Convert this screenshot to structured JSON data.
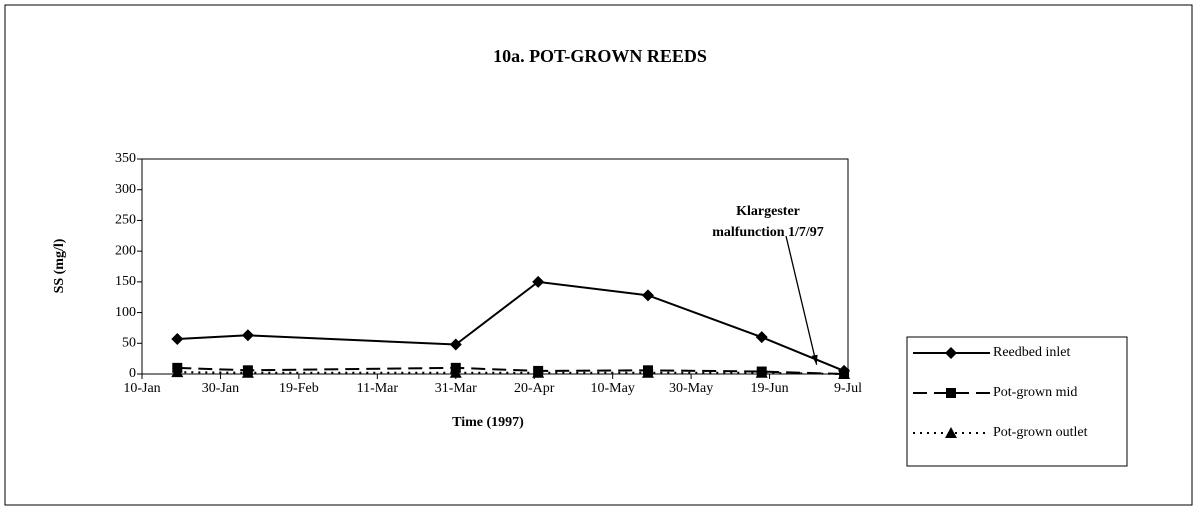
{
  "chart_data": {
    "type": "line",
    "title": "10a. POT-GROWN REEDS",
    "y_label": "SS (mg/l)",
    "x_label": "Time (1997)",
    "x": [
      "1997-01-19",
      "1997-02-06",
      "1997-03-31",
      "1997-04-21",
      "1997-05-19",
      "1997-06-17",
      "1997-07-08"
    ],
    "series": [
      {
        "name": "Reedbed inlet",
        "color": "#000000",
        "marker": "diamond",
        "dash": "solid",
        "values": [
          57,
          63,
          48,
          150,
          128,
          60,
          5
        ]
      },
      {
        "name": "Pot-grown mid",
        "color": "#000000",
        "marker": "square",
        "dash": "dashed",
        "values": [
          10,
          6,
          10,
          5,
          6,
          4,
          0
        ]
      },
      {
        "name": "Pot-grown outlet",
        "color": "#000000",
        "marker": "triangle",
        "dash": "dotted",
        "values": [
          3,
          2,
          2,
          2,
          2,
          2,
          0
        ]
      }
    ],
    "xlim": [
      "1997-01-10",
      "1997-07-09"
    ],
    "xticks": [
      {
        "value": "1997-01-10",
        "label": "10-Jan"
      },
      {
        "value": "1997-01-30",
        "label": "30-Jan"
      },
      {
        "value": "1997-02-19",
        "label": "19-Feb"
      },
      {
        "value": "1997-03-11",
        "label": "11-Mar"
      },
      {
        "value": "1997-03-31",
        "label": "31-Mar"
      },
      {
        "value": "1997-04-20",
        "label": "20-Apr"
      },
      {
        "value": "1997-05-10",
        "label": "10-May"
      },
      {
        "value": "1997-05-30",
        "label": "30-May"
      },
      {
        "value": "1997-06-19",
        "label": "19-Jun"
      },
      {
        "value": "1997-07-09",
        "label": "9-Jul"
      }
    ],
    "ylim": [
      0,
      350
    ],
    "yticks": [
      0,
      50,
      100,
      150,
      200,
      250,
      300,
      350
    ],
    "grid": false,
    "legend": "right",
    "annotation": {
      "lines": [
        "Klargester",
        "malfunction 1/7/97"
      ],
      "x": "1997-07-01",
      "y": 15
    }
  }
}
